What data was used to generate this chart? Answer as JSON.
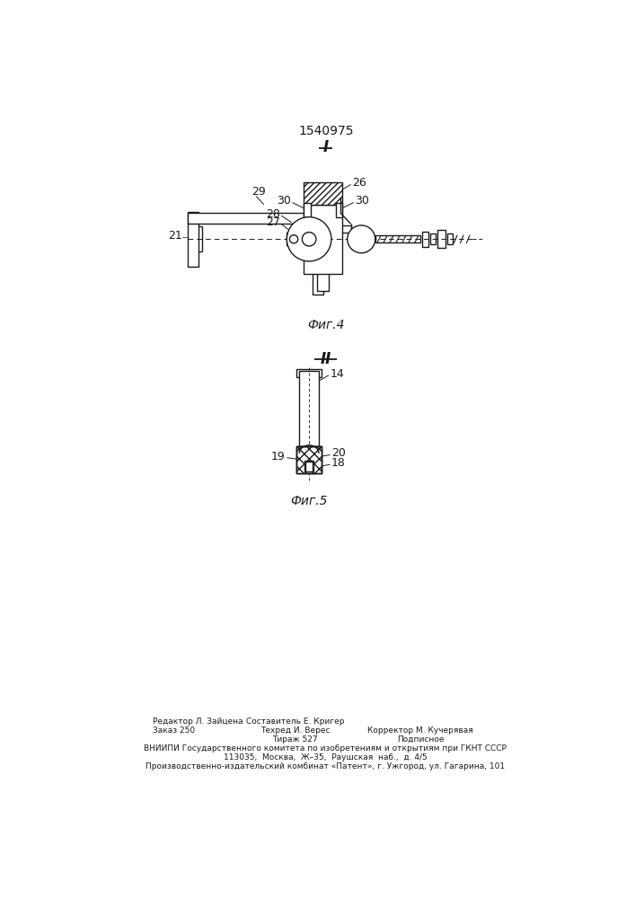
{
  "patent_number": "1540975",
  "fig4_label": "I",
  "fig5_label": "II",
  "fig4_caption": "Фиг.4",
  "fig5_caption": "Фиг.5",
  "footer_col1_line1": "Редактор Л. Зайцена",
  "footer_col2_line1": "Составитель Е. Кригер",
  "footer_col1_line2": "Заказ 250",
  "footer_col2_line2": "Техред И. Верес",
  "footer_col3_line2": "Корректор М. Кучерявая",
  "footer_col2_line3": "Тираж 527",
  "footer_col3_line3": "Подписное",
  "footer_line4": "ВНИИПИ Государственного комитета по изобретениям и открытиям при ГКНТ СССР",
  "footer_line5": "113035,  Москва,  Ж–35,  Раушская  наб.,  д. 4/5",
  "footer_line6": "Производственно-издательский комбинат «Патент», г. Ужгород, ул. Гагарина, 101",
  "background_color": "#ffffff",
  "line_color": "#1a1a1a"
}
